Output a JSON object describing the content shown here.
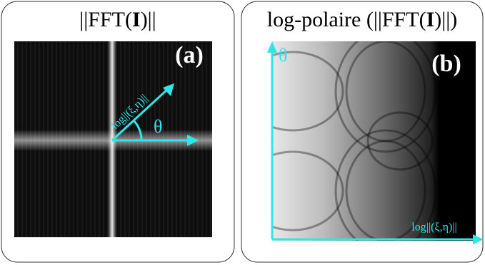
{
  "panels": [
    {
      "title": {
        "before": "||FFT(",
        "bold": "I",
        "after": ")||"
      },
      "tag": "(a)",
      "angle_label": "θ",
      "radius_label": "log||(ξ,η)||"
    },
    {
      "title": {
        "before": "log-polaire (||FFT(",
        "bold": "I",
        "after": ")||)"
      },
      "tag": "(b)",
      "angle_label": "θ",
      "radius_label": "log||(ξ,η)||"
    }
  ]
}
